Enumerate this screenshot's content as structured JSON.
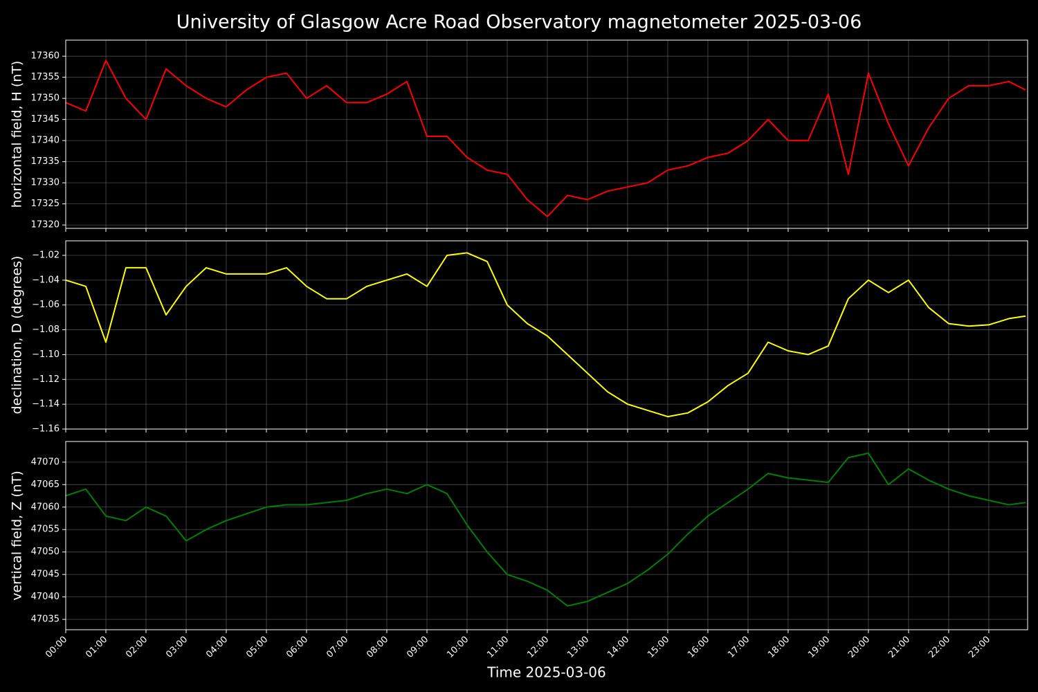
{
  "chart_data": [
    {
      "type": "line",
      "title": "University of Glasgow Acre Road Observatory magnetometer 2025-03-06",
      "ylabel": "horizontal field, H (nT)",
      "grid": true,
      "xlim": [
        "00:00",
        "23:58"
      ],
      "xticks": [
        "00:00",
        "01:00",
        "02:00",
        "03:00",
        "04:00",
        "05:00",
        "06:00",
        "07:00",
        "08:00",
        "09:00",
        "10:00",
        "11:00",
        "12:00",
        "13:00",
        "14:00",
        "15:00",
        "16:00",
        "17:00",
        "18:00",
        "19:00",
        "20:00",
        "21:00",
        "22:00",
        "23:00"
      ],
      "ylim": [
        17319.2,
        17363.8
      ],
      "yticks": [
        17320,
        17325,
        17330,
        17335,
        17340,
        17345,
        17350,
        17355,
        17360
      ],
      "x": [
        "00:00",
        "00:30",
        "01:00",
        "01:30",
        "02:00",
        "02:30",
        "03:00",
        "03:30",
        "04:00",
        "04:30",
        "05:00",
        "05:30",
        "06:00",
        "06:30",
        "07:00",
        "07:30",
        "08:00",
        "08:30",
        "09:00",
        "09:30",
        "10:00",
        "10:30",
        "11:00",
        "11:30",
        "12:00",
        "12:30",
        "13:00",
        "13:30",
        "14:00",
        "14:30",
        "15:00",
        "15:30",
        "16:00",
        "16:30",
        "17:00",
        "17:30",
        "18:00",
        "18:30",
        "19:00",
        "19:30",
        "20:00",
        "20:30",
        "21:00",
        "21:30",
        "22:00",
        "22:30",
        "23:00",
        "23:30",
        "23:55"
      ],
      "series": [
        {
          "color": "#ff0000",
          "values": [
            17349,
            17347,
            17359,
            17350,
            17345,
            17357,
            17353,
            17350,
            17348,
            17352,
            17355,
            17356,
            17350,
            17353,
            17349,
            17349,
            17351,
            17354,
            17341,
            17341,
            17336,
            17333,
            17332,
            17326,
            17322,
            17327,
            17326,
            17328,
            17329,
            17330,
            17333,
            17334,
            17336,
            17337,
            17340,
            17345,
            17340,
            17340,
            17351,
            17332,
            17356,
            17344,
            17334,
            17343,
            17350,
            17353,
            17353,
            17354,
            17352
          ]
        }
      ]
    },
    {
      "type": "line",
      "ylabel": "declination, D (degrees)",
      "grid": true,
      "xlim": [
        "00:00",
        "23:58"
      ],
      "xticks": [
        "00:00",
        "01:00",
        "02:00",
        "03:00",
        "04:00",
        "05:00",
        "06:00",
        "07:00",
        "08:00",
        "09:00",
        "10:00",
        "11:00",
        "12:00",
        "13:00",
        "14:00",
        "15:00",
        "16:00",
        "17:00",
        "18:00",
        "19:00",
        "20:00",
        "21:00",
        "22:00",
        "23:00"
      ],
      "ylim": [
        -1.16,
        -1.0083
      ],
      "yticks": [
        {
          "value": -1.16,
          "label": "−1.16"
        },
        {
          "value": -1.14,
          "label": "−1.14"
        },
        {
          "value": -1.12,
          "label": "−1.12"
        },
        {
          "value": -1.1,
          "label": "−1.10"
        },
        {
          "value": -1.08,
          "label": "−1.08"
        },
        {
          "value": -1.06,
          "label": "−1.06"
        },
        {
          "value": -1.04,
          "label": "−1.04"
        },
        {
          "value": -1.02,
          "label": "−1.02"
        }
      ],
      "x": [
        "00:00",
        "00:30",
        "01:00",
        "01:30",
        "02:00",
        "02:30",
        "03:00",
        "03:30",
        "04:00",
        "04:30",
        "05:00",
        "05:30",
        "06:00",
        "06:30",
        "07:00",
        "07:30",
        "08:00",
        "08:30",
        "09:00",
        "09:30",
        "10:00",
        "10:30",
        "11:00",
        "11:30",
        "12:00",
        "12:30",
        "13:00",
        "13:30",
        "14:00",
        "14:30",
        "15:00",
        "15:30",
        "16:00",
        "16:30",
        "17:00",
        "17:30",
        "18:00",
        "18:30",
        "19:00",
        "19:30",
        "20:00",
        "20:30",
        "21:00",
        "21:30",
        "22:00",
        "22:30",
        "23:00",
        "23:30",
        "23:55"
      ],
      "series": [
        {
          "color": "#ffff00",
          "values": [
            -1.04,
            -1.045,
            -1.09,
            -1.03,
            -1.03,
            -1.068,
            -1.045,
            -1.03,
            -1.035,
            -1.035,
            -1.035,
            -1.03,
            -1.045,
            -1.055,
            -1.055,
            -1.045,
            -1.04,
            -1.035,
            -1.045,
            -1.02,
            -1.018,
            -1.025,
            -1.06,
            -1.075,
            -1.085,
            -1.1,
            -1.115,
            -1.13,
            -1.14,
            -1.145,
            -1.15,
            -1.147,
            -1.138,
            -1.125,
            -1.115,
            -1.09,
            -1.097,
            -1.1,
            -1.093,
            -1.055,
            -1.04,
            -1.05,
            -1.04,
            -1.062,
            -1.075,
            -1.077,
            -1.076,
            -1.071,
            -1.069
          ]
        }
      ]
    },
    {
      "type": "line",
      "ylabel": "vertical field, Z (nT)",
      "xlabel": "Time 2025-03-06",
      "grid": true,
      "xlim": [
        "00:00",
        "23:58"
      ],
      "xticks": [
        "00:00",
        "01:00",
        "02:00",
        "03:00",
        "04:00",
        "05:00",
        "06:00",
        "07:00",
        "08:00",
        "09:00",
        "10:00",
        "11:00",
        "12:00",
        "13:00",
        "14:00",
        "15:00",
        "16:00",
        "17:00",
        "18:00",
        "19:00",
        "20:00",
        "21:00",
        "22:00",
        "23:00"
      ],
      "ylim": [
        47032.7,
        47074.6
      ],
      "yticks": [
        47035,
        47040,
        47045,
        47050,
        47055,
        47060,
        47065,
        47070
      ],
      "x": [
        "00:00",
        "00:30",
        "01:00",
        "01:30",
        "02:00",
        "02:30",
        "03:00",
        "03:30",
        "04:00",
        "04:30",
        "05:00",
        "05:30",
        "06:00",
        "06:30",
        "07:00",
        "07:30",
        "08:00",
        "08:30",
        "09:00",
        "09:30",
        "10:00",
        "10:30",
        "11:00",
        "11:30",
        "12:00",
        "12:30",
        "13:00",
        "13:30",
        "14:00",
        "14:30",
        "15:00",
        "15:30",
        "16:00",
        "16:30",
        "17:00",
        "17:30",
        "18:00",
        "18:30",
        "19:00",
        "19:30",
        "20:00",
        "20:30",
        "21:00",
        "21:30",
        "22:00",
        "22:30",
        "23:00",
        "23:30",
        "23:55"
      ],
      "series": [
        {
          "color": "#008000",
          "values": [
            47062.5,
            47064,
            47058,
            47057,
            47060,
            47058,
            47052.5,
            47055,
            47057,
            47058.5,
            47060,
            47060.5,
            47060.5,
            47061,
            47061.5,
            47063,
            47064,
            47063,
            47065,
            47063,
            47056,
            47050,
            47045,
            47043.5,
            47041.5,
            47038,
            47039,
            47041,
            47043,
            47046,
            47049.5,
            47054,
            47058,
            47061,
            47064,
            47067.5,
            47066.5,
            47066,
            47065.5,
            47071,
            47072,
            47065,
            47068.5,
            47066,
            47064,
            47062.5,
            47061.5,
            47060.5,
            47061
          ]
        }
      ]
    }
  ]
}
